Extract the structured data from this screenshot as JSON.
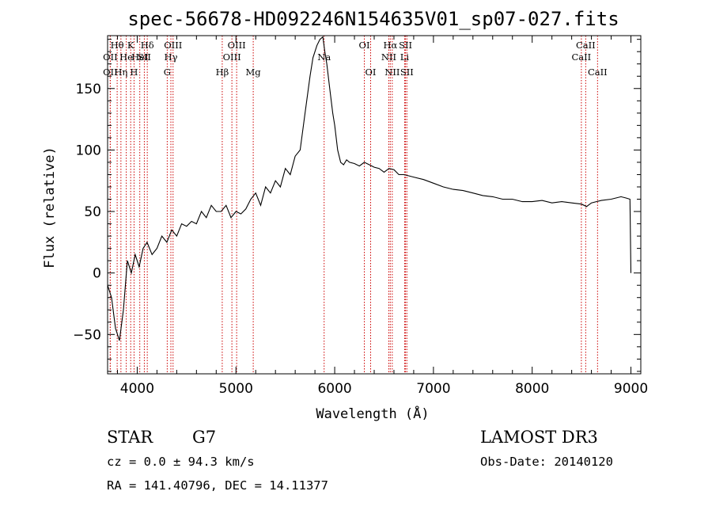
{
  "chart_data": {
    "type": "line",
    "title": "spec-56678-HD092246N154635V01_sp07-027.fits",
    "xlabel": "Wavelength (Å)",
    "ylabel": "Flux (relative)",
    "xlim": [
      3700,
      9100
    ],
    "ylim": [
      -82,
      193
    ],
    "xticks": [
      4000,
      5000,
      6000,
      7000,
      8000,
      9000
    ],
    "yticks": [
      -50,
      0,
      50,
      100,
      150
    ],
    "series": [
      {
        "name": "flux",
        "x": [
          3700,
          3740,
          3780,
          3820,
          3860,
          3900,
          3940,
          3980,
          4020,
          4060,
          4100,
          4150,
          4200,
          4250,
          4300,
          4350,
          4400,
          4450,
          4500,
          4550,
          4600,
          4650,
          4700,
          4750,
          4800,
          4850,
          4900,
          4950,
          5000,
          5050,
          5100,
          5150,
          5200,
          5250,
          5300,
          5350,
          5400,
          5450,
          5500,
          5550,
          5600,
          5650,
          5700,
          5750,
          5780,
          5820,
          5850,
          5880,
          5900,
          5920,
          5950,
          5980,
          6000,
          6030,
          6060,
          6090,
          6120,
          6150,
          6200,
          6250,
          6300,
          6350,
          6400,
          6450,
          6500,
          6550,
          6600,
          6650,
          6700,
          6750,
          6800,
          6900,
          7000,
          7100,
          7200,
          7300,
          7400,
          7500,
          7600,
          7700,
          7800,
          7900,
          8000,
          8100,
          8200,
          8300,
          8400,
          8500,
          8550,
          8600,
          8650,
          8700,
          8800,
          8900,
          8950,
          8990,
          9000
        ],
        "y": [
          -10,
          -20,
          -45,
          -55,
          -30,
          10,
          0,
          15,
          5,
          20,
          25,
          15,
          20,
          30,
          25,
          35,
          30,
          40,
          38,
          42,
          40,
          50,
          45,
          55,
          50,
          50,
          55,
          45,
          50,
          48,
          52,
          60,
          65,
          55,
          70,
          65,
          75,
          70,
          85,
          80,
          95,
          100,
          130,
          160,
          175,
          185,
          190,
          192,
          180,
          170,
          150,
          130,
          120,
          100,
          90,
          88,
          92,
          90,
          89,
          87,
          90,
          88,
          86,
          85,
          82,
          85,
          84,
          80,
          80,
          79,
          78,
          76,
          73,
          70,
          68,
          67,
          65,
          63,
          62,
          60,
          60,
          58,
          58,
          59,
          57,
          58,
          57,
          56,
          54,
          57,
          58,
          59,
          60,
          62,
          61,
          60,
          0
        ]
      }
    ],
    "spectral_lines": [
      {
        "label": "Hθ",
        "x": 3797,
        "row": 1
      },
      {
        "label": "OII",
        "x": 3727,
        "row": 2
      },
      {
        "label": "OII",
        "x": 3727,
        "row": 3
      },
      {
        "label": "He",
        "x": 3889,
        "row": 2
      },
      {
        "label": "Hη",
        "x": 3835,
        "row": 3
      },
      {
        "label": "K",
        "x": 3934,
        "row": 1
      },
      {
        "label": "H",
        "x": 3968,
        "row": 3
      },
      {
        "label": "HeI",
        "x": 4026,
        "row": 2
      },
      {
        "label": "SII",
        "x": 4072,
        "row": 2
      },
      {
        "label": "Hδ",
        "x": 4102,
        "row": 1
      },
      {
        "label": "OIII",
        "x": 4363,
        "row": 1
      },
      {
        "label": "Hγ",
        "x": 4341,
        "row": 2
      },
      {
        "label": "G",
        "x": 4304,
        "row": 3
      },
      {
        "label": "OIII",
        "x": 5007,
        "row": 1
      },
      {
        "label": "OIII",
        "x": 4959,
        "row": 2
      },
      {
        "label": "Hβ",
        "x": 4861,
        "row": 3
      },
      {
        "label": "Mg",
        "x": 5175,
        "row": 3
      },
      {
        "label": "Na",
        "x": 5893,
        "row": 2
      },
      {
        "label": "OI",
        "x": 6300,
        "row": 1
      },
      {
        "label": "OI",
        "x": 6364,
        "row": 3
      },
      {
        "label": "Hα",
        "x": 6563,
        "row": 1
      },
      {
        "label": "SII",
        "x": 6717,
        "row": 1
      },
      {
        "label": "NII",
        "x": 6548,
        "row": 2
      },
      {
        "label": "Li",
        "x": 6708,
        "row": 2
      },
      {
        "label": "NII",
        "x": 6583,
        "row": 3
      },
      {
        "label": "SII",
        "x": 6731,
        "row": 3
      },
      {
        "label": "CaII",
        "x": 8542,
        "row": 1
      },
      {
        "label": "CaII",
        "x": 8498,
        "row": 2
      },
      {
        "label": "CaII",
        "x": 8662,
        "row": 3
      }
    ],
    "line_color": "#000000",
    "marker_color": "#cc0000"
  },
  "info": {
    "object_class": "STAR",
    "subclass": "G7",
    "survey": "LAMOST DR3",
    "cz": "cz = 0.0 ± 94.3 km/s",
    "obs_date": "Obs-Date: 20140120",
    "coords": "RA = 141.40796, DEC =  14.11377"
  }
}
